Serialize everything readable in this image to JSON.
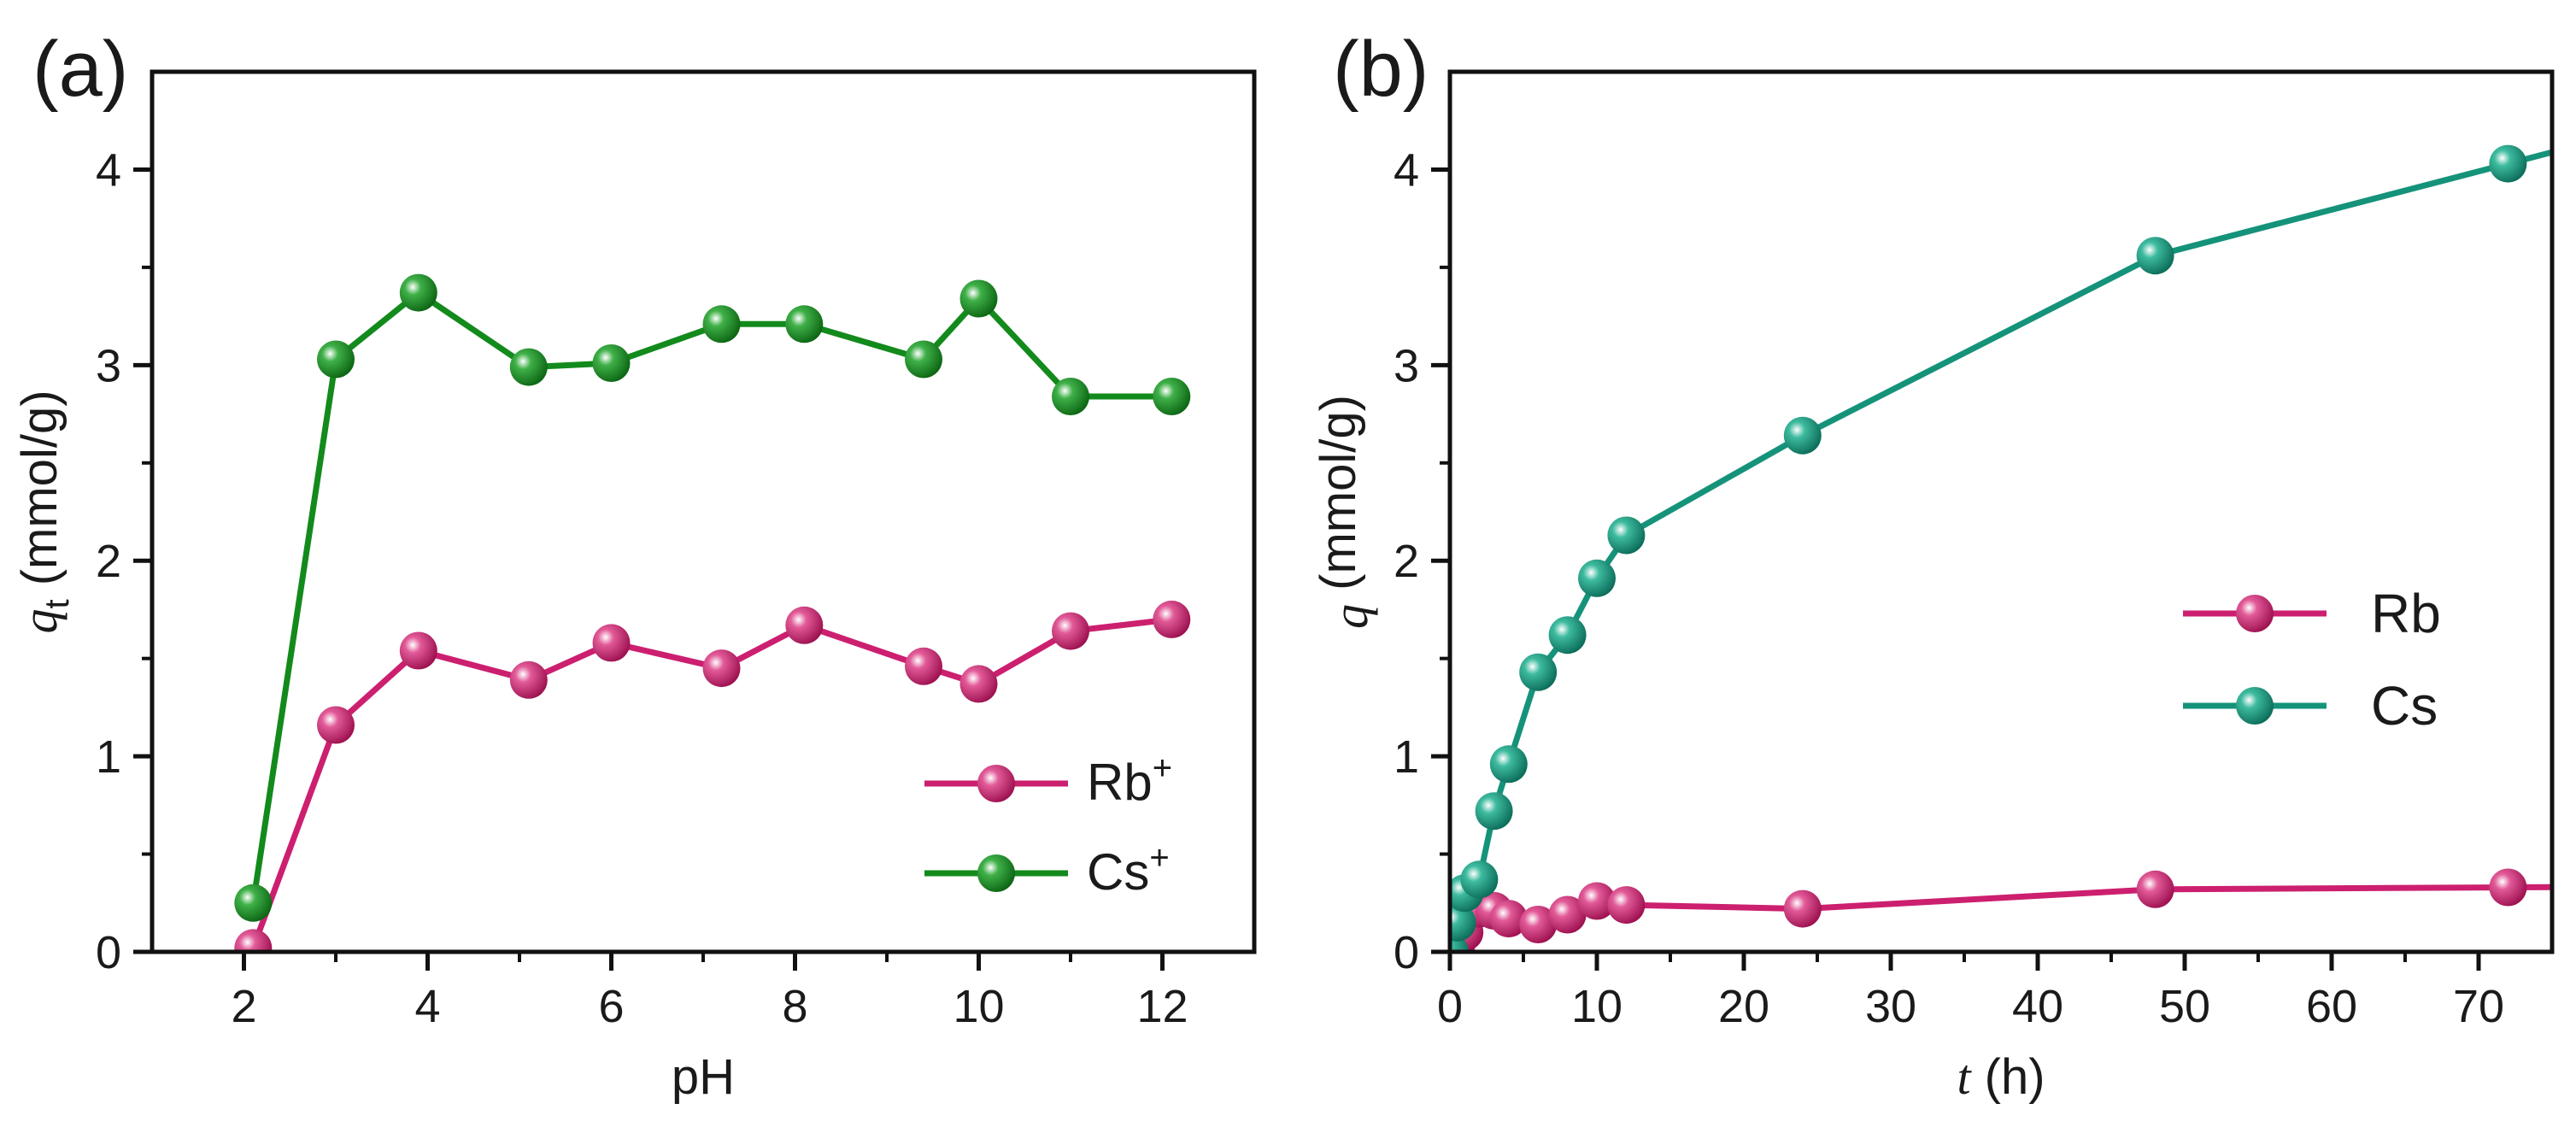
{
  "chart_data": [
    {
      "type": "line",
      "panel_label": "(a)",
      "xlabel": "pH",
      "ylabel": "q",
      "ylabel_sub": "t",
      "ylabel_unit": " (mmol/g)",
      "xlim": [
        1,
        13
      ],
      "ylim": [
        0,
        4.5
      ],
      "xticks": [
        "2",
        "4",
        "6",
        "8",
        "10",
        "12"
      ],
      "yticks": [
        "0",
        "1",
        "2",
        "3",
        "4"
      ],
      "legend_position": "bottom-right",
      "series": [
        {
          "name": "Rb",
          "sup": "+",
          "color": "#cc1f6f",
          "x": [
            2.1,
            3.0,
            3.9,
            5.1,
            6.0,
            7.2,
            8.1,
            9.4,
            10.0,
            11.0,
            12.1
          ],
          "values": [
            0.02,
            1.16,
            1.54,
            1.39,
            1.58,
            1.45,
            1.67,
            1.46,
            1.37,
            1.64,
            1.7
          ]
        },
        {
          "name": "Cs",
          "sup": "+",
          "color": "#138a1c",
          "x": [
            2.1,
            3.0,
            3.9,
            5.1,
            6.0,
            7.2,
            8.1,
            9.4,
            10.0,
            11.0,
            12.1
          ],
          "values": [
            0.25,
            3.03,
            3.37,
            2.99,
            3.01,
            3.21,
            3.21,
            3.03,
            3.34,
            2.84,
            2.84
          ]
        }
      ]
    },
    {
      "type": "line",
      "panel_label": "(b)",
      "xlabel": "t",
      "xlabel_unit": " (h)",
      "ylabel": "q",
      "ylabel_sub": "",
      "ylabel_unit": " (mmol/g)",
      "xlim": [
        0,
        75
      ],
      "ylim": [
        0,
        4.5
      ],
      "xticks": [
        "0",
        "10",
        "20",
        "30",
        "40",
        "50",
        "60",
        "70"
      ],
      "yticks": [
        "0",
        "1",
        "2",
        "3",
        "4"
      ],
      "legend_position": "center-right",
      "series": [
        {
          "name": "Rb",
          "sup": "",
          "color": "#cc1f6f",
          "x": [
            0,
            0.5,
            1,
            2,
            3,
            4,
            6,
            8,
            10,
            12,
            24,
            48,
            72
          ],
          "values": [
            0,
            0.05,
            0.1,
            0.22,
            0.21,
            0.17,
            0.14,
            0.19,
            0.26,
            0.24,
            0.22,
            0.32,
            0.33
          ]
        },
        {
          "name": "Cs",
          "sup": "",
          "color": "#15937a",
          "x": [
            0,
            0.5,
            1,
            2,
            3,
            4,
            6,
            8,
            10,
            12,
            24,
            48,
            72
          ],
          "values": [
            0,
            0.15,
            0.3,
            0.37,
            0.72,
            0.96,
            1.43,
            1.62,
            1.91,
            2.13,
            2.64,
            3.56,
            4.03
          ]
        }
      ]
    }
  ]
}
